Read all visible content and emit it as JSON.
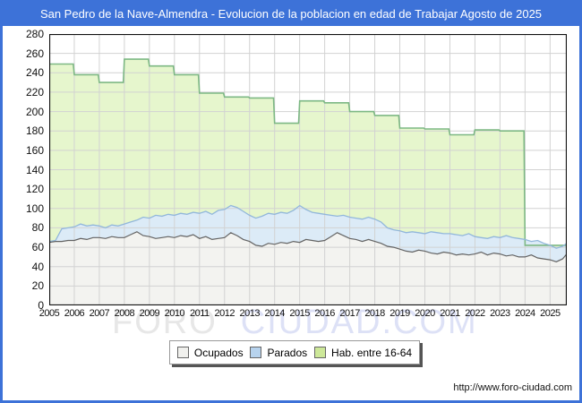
{
  "title_bar": {
    "text": "San Pedro de la Nave-Almendra - Evolucion de la poblacion en edad de Trabajar Agosto de 2025",
    "bg_color": "#3d72d8",
    "text_color": "#ffffff"
  },
  "watermark": {
    "part1": "FORO",
    "part2": "CIUDAD.COM"
  },
  "footer": {
    "url": "http://www.foro-ciudad.com"
  },
  "legend": {
    "items": [
      {
        "label": "Ocupados",
        "swatch": "#f0f0ed"
      },
      {
        "label": "Parados",
        "swatch": "#b7d3ee"
      },
      {
        "label": "Hab. entre 16-64",
        "swatch": "#cde899"
      }
    ]
  },
  "chart_data": {
    "type": "area",
    "title": "San Pedro de la Nave-Almendra - Evolucion de la poblacion en edad de Trabajar Agosto de 2025",
    "xlabel": "",
    "ylabel": "",
    "x_range": [
      2005,
      2025.667
    ],
    "ylim": [
      0,
      280
    ],
    "grid": true,
    "legend_position": "bottom",
    "colors": {
      "grid": "#d2d2d2",
      "plot_border": "#111111",
      "hab_fill": "#e6f6cd",
      "hab_line": "#7db884",
      "parados_fill": "#dcebf7",
      "parados_line": "#92b7db",
      "ocupados_fill": "#f3f3f0",
      "ocupados_line": "#636363"
    },
    "y_axis": {
      "min": 0,
      "max": 280,
      "step": 20,
      "ticks": [
        0,
        20,
        40,
        60,
        80,
        100,
        120,
        140,
        160,
        180,
        200,
        220,
        240,
        260,
        280
      ]
    },
    "x_axis": {
      "ticks": [
        2005,
        2006,
        2007,
        2008,
        2009,
        2010,
        2011,
        2012,
        2013,
        2014,
        2015,
        2016,
        2017,
        2018,
        2019,
        2020,
        2021,
        2022,
        2023,
        2024,
        2025
      ]
    },
    "series": [
      {
        "name": "Hab. entre 16-64",
        "style": "step-annual",
        "years": [
          2005,
          2006,
          2007,
          2008,
          2009,
          2010,
          2011,
          2012,
          2013,
          2014,
          2015,
          2016,
          2017,
          2018,
          2019,
          2020,
          2021,
          2022,
          2023,
          2024,
          2025
        ],
        "values": [
          249,
          238,
          230,
          254,
          247,
          238,
          219,
          215,
          214,
          188,
          211,
          209,
          200,
          196,
          183,
          182,
          176,
          181,
          180,
          62,
          62
        ]
      },
      {
        "name": "Parados",
        "style": "line-quarterly",
        "stacking": "values are Ocupados+Parados stacked top",
        "x_start": 2005,
        "x_step": 0.25,
        "x_end": 2025.667,
        "values": [
          66,
          67,
          79,
          80,
          81,
          84,
          82,
          83,
          82,
          80,
          83,
          82,
          84,
          86,
          88,
          91,
          90,
          93,
          92,
          94,
          93,
          95,
          94,
          96,
          95,
          97,
          94,
          98,
          99,
          103,
          101,
          97,
          93,
          90,
          92,
          95,
          94,
          96,
          95,
          98,
          103,
          99,
          96,
          95,
          94,
          93,
          92,
          93,
          91,
          90,
          89,
          91,
          89,
          86,
          80,
          78,
          77,
          75,
          76,
          75,
          74,
          76,
          75,
          74,
          74,
          73,
          72,
          74,
          71,
          70,
          69,
          71,
          70,
          72,
          70,
          69,
          68,
          66,
          67,
          64,
          62,
          59,
          61,
          64
        ]
      },
      {
        "name": "Ocupados",
        "style": "line-quarterly",
        "x_start": 2005,
        "x_step": 0.25,
        "x_end": 2025.667,
        "values": [
          65,
          66,
          66,
          67,
          67,
          69,
          68,
          70,
          70,
          69,
          71,
          70,
          70,
          73,
          76,
          72,
          71,
          69,
          70,
          71,
          70,
          72,
          71,
          73,
          69,
          71,
          68,
          69,
          70,
          75,
          72,
          68,
          66,
          62,
          61,
          64,
          63,
          65,
          64,
          66,
          65,
          68,
          67,
          66,
          67,
          71,
          75,
          72,
          69,
          68,
          66,
          68,
          66,
          64,
          61,
          60,
          58,
          56,
          55,
          57,
          56,
          54,
          53,
          55,
          54,
          52,
          53,
          52,
          53,
          55,
          52,
          54,
          53,
          51,
          52,
          50,
          50,
          52,
          49,
          48,
          47,
          45,
          48,
          53
        ]
      }
    ]
  }
}
